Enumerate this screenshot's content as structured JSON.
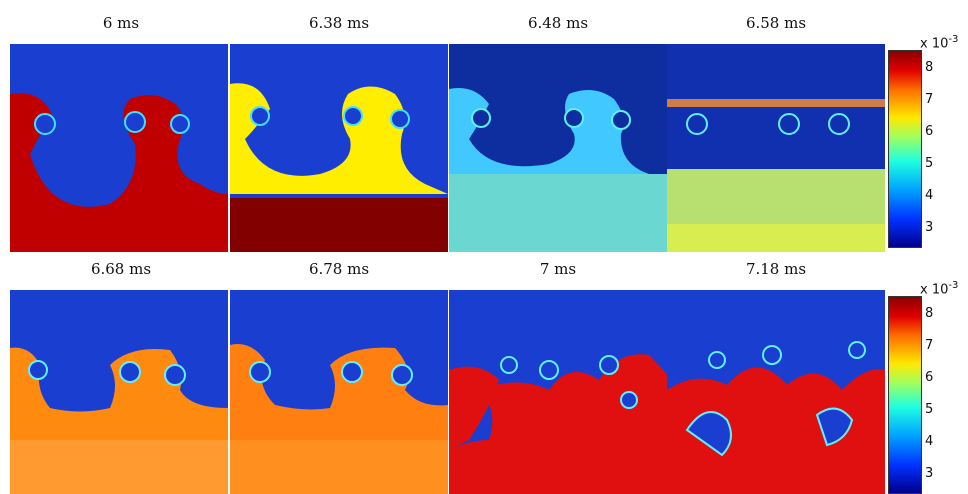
{
  "panels": [
    {
      "title": "6 ms"
    },
    {
      "title": "6.38 ms"
    },
    {
      "title": "6.48 ms"
    },
    {
      "title": "6.58 ms"
    },
    {
      "title": "6.68 ms"
    },
    {
      "title": "6.78 ms"
    },
    {
      "title": "7 ms"
    },
    {
      "title": "7.18 ms"
    }
  ],
  "colorbar": {
    "multiplier_base": "x 10",
    "multiplier_exponent": "-3",
    "ticks": [
      "8",
      "7",
      "6",
      "5",
      "4",
      "3"
    ]
  },
  "colors": {
    "background_blue": "#1040c8",
    "dark_red": "#b00000",
    "yellow": "#ffee00",
    "cyan": "#20c8ff",
    "orange": "#ff8a10",
    "red": "#e01010"
  }
}
